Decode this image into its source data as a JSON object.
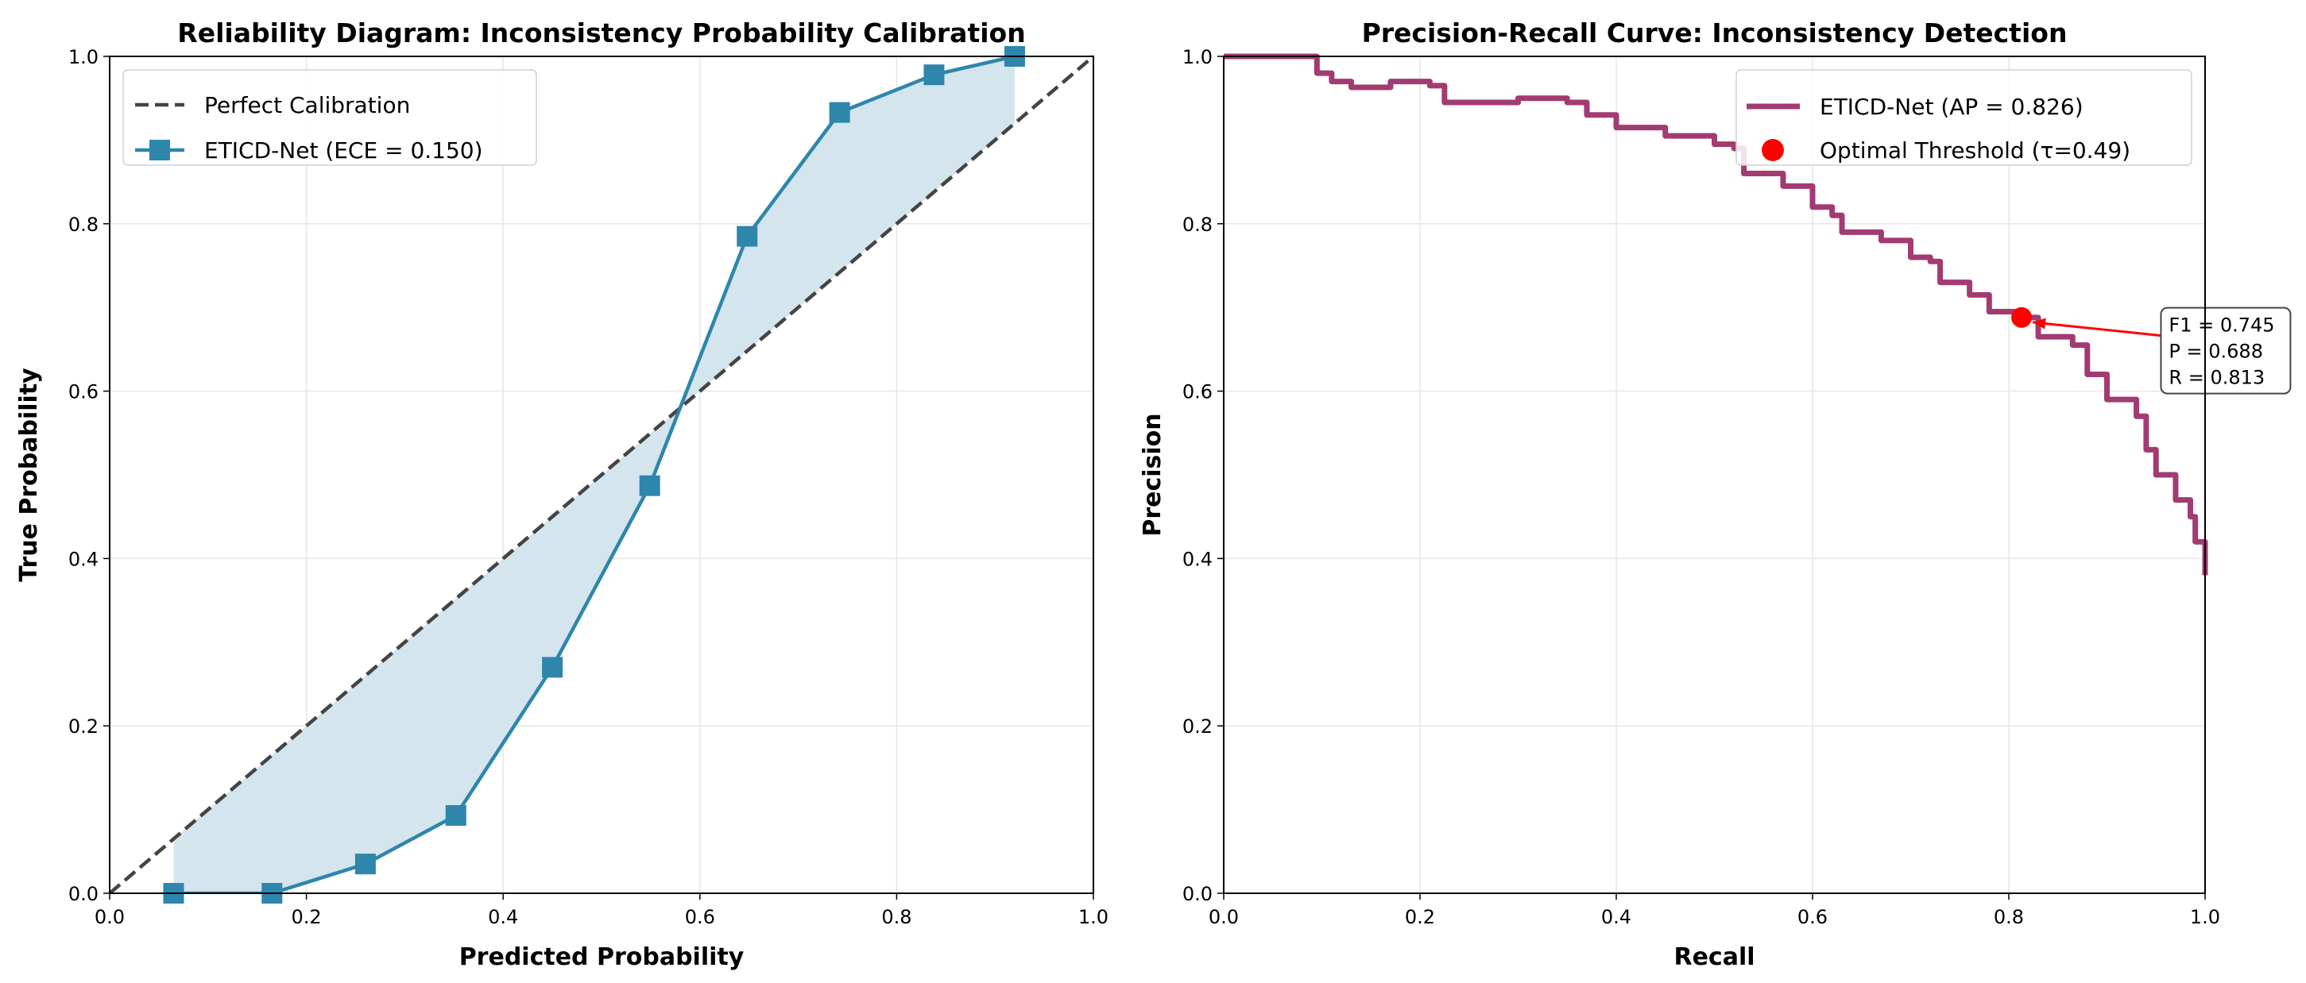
{
  "chart_data": [
    {
      "type": "line",
      "title": "Reliability Diagram: Inconsistency Probability Calibration",
      "xlabel": "Predicted Probability",
      "ylabel": "True Probability",
      "xlim": [
        0,
        1
      ],
      "ylim": [
        0,
        1
      ],
      "xticks": [
        "0.0",
        "0.2",
        "0.4",
        "0.6",
        "0.8",
        "1.0"
      ],
      "yticks": [
        "0.0",
        "0.2",
        "0.4",
        "0.6",
        "0.8",
        "1.0"
      ],
      "grid": true,
      "legend_placement": "upper-left",
      "series": [
        {
          "name": "Perfect Calibration",
          "style": "dashed",
          "color": "#444444",
          "x": [
            0,
            1
          ],
          "y": [
            0,
            1
          ]
        },
        {
          "name": "ETICD-Net (ECE = 0.150)",
          "style": "solid-square-markers",
          "color": "#2E86AB",
          "fill_to_diagonal": true,
          "fill_color": "#D4E5EE",
          "x": [
            0.065,
            0.165,
            0.26,
            0.352,
            0.45,
            0.549,
            0.648,
            0.742,
            0.838,
            0.92
          ],
          "y": [
            0.0,
            0.0,
            0.035,
            0.093,
            0.27,
            0.487,
            0.785,
            0.933,
            0.978,
            1.0
          ]
        }
      ]
    },
    {
      "type": "line",
      "title": "Precision-Recall Curve: Inconsistency Detection",
      "xlabel": "Recall",
      "ylabel": "Precision",
      "xlim": [
        0,
        1
      ],
      "ylim": [
        0,
        1
      ],
      "xticks": [
        "0.0",
        "0.2",
        "0.4",
        "0.6",
        "0.8",
        "1.0"
      ],
      "yticks": [
        "0.0",
        "0.2",
        "0.4",
        "0.6",
        "0.8",
        "1.0"
      ],
      "grid": true,
      "legend_placement": "upper-right",
      "series": [
        {
          "name": "ETICD-Net (AP = 0.826)",
          "style": "step",
          "color": "#A23B72",
          "x": [
            0,
            0.095,
            0.095,
            0.11,
            0.13,
            0.17,
            0.21,
            0.225,
            0.26,
            0.3,
            0.35,
            0.37,
            0.4,
            0.44,
            0.45,
            0.5,
            0.52,
            0.53,
            0.57,
            0.6,
            0.62,
            0.63,
            0.67,
            0.7,
            0.72,
            0.73,
            0.76,
            0.78,
            0.813,
            0.83,
            0.865,
            0.88,
            0.9,
            0.93,
            0.94,
            0.95,
            0.97,
            0.985,
            0.99,
            1.0
          ],
          "y": [
            1.0,
            1.0,
            0.98,
            0.97,
            0.963,
            0.97,
            0.965,
            0.945,
            0.945,
            0.95,
            0.945,
            0.93,
            0.915,
            0.915,
            0.905,
            0.895,
            0.89,
            0.86,
            0.845,
            0.82,
            0.81,
            0.79,
            0.78,
            0.76,
            0.755,
            0.73,
            0.715,
            0.695,
            0.688,
            0.665,
            0.655,
            0.62,
            0.59,
            0.57,
            0.53,
            0.5,
            0.47,
            0.45,
            0.42,
            0.38
          ]
        },
        {
          "name": "Optimal Threshold (τ=0.49)",
          "style": "marker",
          "color": "#FF0000",
          "x": [
            0.813
          ],
          "y": [
            0.688
          ]
        }
      ],
      "annotation": {
        "lines": [
          "F1 = 0.745",
          "P = 0.688",
          "R = 0.813"
        ],
        "point": [
          0.813,
          0.688
        ],
        "text_at": [
          0.955,
          0.6
        ],
        "arrow_color": "#FF0000"
      }
    }
  ]
}
